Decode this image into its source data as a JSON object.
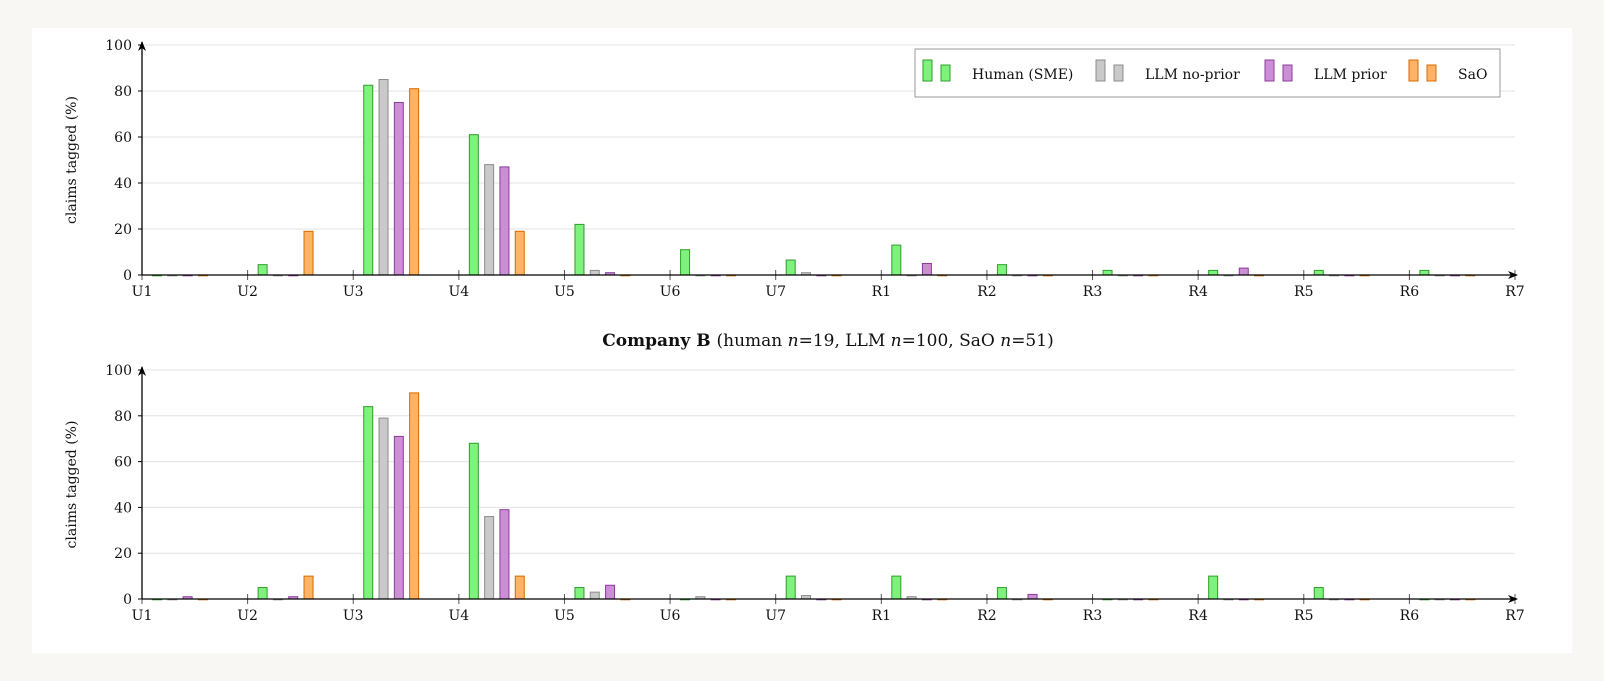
{
  "chart_data": [
    {
      "type": "bar",
      "title": "",
      "ylabel": "claims tagged (%)",
      "ylim": [
        0,
        100
      ],
      "yticks": [
        0,
        20,
        40,
        60,
        80,
        100
      ],
      "grid": true,
      "legend_position": "top-right",
      "categories": [
        "U1",
        "U2",
        "U3",
        "U4",
        "U5",
        "U6",
        "U7",
        "R1",
        "R2",
        "R3",
        "R4",
        "R5",
        "R6",
        "R7"
      ],
      "series": [
        {
          "name": "Human (SME)",
          "color": "#7ef27c",
          "stroke": "#2e9e2a",
          "values": [
            0,
            4.5,
            82.5,
            61,
            22,
            11,
            6.5,
            13,
            4.5,
            2,
            2,
            2,
            2,
            0
          ]
        },
        {
          "name": "LLM no-prior",
          "color": "#c9c9c9",
          "stroke": "#8c8c8c",
          "values": [
            0,
            0,
            85,
            48,
            2,
            0,
            1,
            0,
            0,
            0,
            0,
            0,
            0,
            0
          ]
        },
        {
          "name": "LLM prior",
          "color": "#cc8fd6",
          "stroke": "#8a3c99",
          "values": [
            0,
            0,
            75,
            47,
            1,
            0,
            0,
            5,
            0,
            0,
            3,
            0,
            0,
            0
          ]
        },
        {
          "name": "SaO",
          "color": "#ffb366",
          "stroke": "#d46a00",
          "values": [
            0,
            19,
            81,
            19,
            0,
            0,
            0,
            0,
            0,
            0,
            0,
            0,
            0,
            0
          ]
        }
      ]
    },
    {
      "type": "bar",
      "title": "",
      "title_bold": "Company B",
      "title_parts": [
        "(human ",
        "n",
        "=19, LLM ",
        "n",
        "=100, SaO ",
        "n",
        "=51)"
      ],
      "ylabel": "claims tagged (%)",
      "ylim": [
        0,
        100
      ],
      "yticks": [
        0,
        20,
        40,
        60,
        80,
        100
      ],
      "grid": true,
      "categories": [
        "U1",
        "U2",
        "U3",
        "U4",
        "U5",
        "U6",
        "U7",
        "R1",
        "R2",
        "R3",
        "R4",
        "R5",
        "R6",
        "R7"
      ],
      "series": [
        {
          "name": "Human (SME)",
          "color": "#7ef27c",
          "stroke": "#2e9e2a",
          "values": [
            0,
            5,
            84,
            68,
            5,
            0,
            10,
            10,
            5,
            0,
            10,
            5,
            0,
            0
          ]
        },
        {
          "name": "LLM no-prior",
          "color": "#c9c9c9",
          "stroke": "#8c8c8c",
          "values": [
            0,
            0,
            79,
            36,
            3,
            1,
            1.5,
            1,
            0,
            0,
            0,
            0,
            0,
            0
          ]
        },
        {
          "name": "LLM prior",
          "color": "#cc8fd6",
          "stroke": "#8a3c99",
          "values": [
            1,
            1,
            71,
            39,
            6,
            0,
            0,
            0,
            2,
            0,
            0,
            0,
            0,
            0
          ]
        },
        {
          "name": "SaO",
          "color": "#ffb366",
          "stroke": "#d46a00",
          "values": [
            0,
            10,
            90,
            10,
            0,
            0,
            0,
            0,
            0,
            0,
            0,
            0,
            0,
            0
          ]
        }
      ]
    }
  ]
}
